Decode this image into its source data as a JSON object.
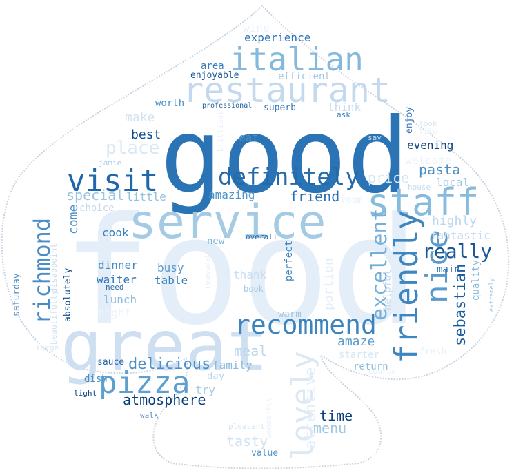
{
  "words": [
    {
      "text": "food",
      "color": "#e4eef8",
      "rotate": 0
    },
    {
      "text": "good",
      "color": "#2a74b6",
      "rotate": 0
    },
    {
      "text": "great",
      "color": "#cddff0",
      "rotate": 0
    },
    {
      "text": "service",
      "color": "#a4cbe3",
      "rotate": 0
    },
    {
      "text": "restaurant",
      "color": "#c3d9ed",
      "rotate": 0
    },
    {
      "text": "staff",
      "color": "#86bbde",
      "rotate": 0
    },
    {
      "text": "italian",
      "color": "#85b9dc",
      "rotate": 0
    },
    {
      "text": "recommend",
      "color": "#3b84bf",
      "rotate": 0
    },
    {
      "text": "friendly",
      "color": "#3d86c0",
      "rotate": -90
    },
    {
      "text": "pizza",
      "color": "#5d9fce",
      "rotate": 0
    },
    {
      "text": "lovely",
      "color": "#dce9f5",
      "rotate": -90
    },
    {
      "text": "visit",
      "color": "#1f67ad",
      "rotate": 0
    },
    {
      "text": "nice",
      "color": "#5b9bcb",
      "rotate": -90
    },
    {
      "text": "definitely",
      "color": "#236aab",
      "rotate": 0
    },
    {
      "text": "richmond",
      "color": "#4a8cc5",
      "rotate": -90
    },
    {
      "text": "excellent",
      "color": "#75afd7",
      "rotate": -90
    },
    {
      "text": "really",
      "color": "#1a5896",
      "rotate": 0
    },
    {
      "text": "delicious",
      "color": "#4b90c8",
      "rotate": 0
    },
    {
      "text": "atmosphere",
      "color": "#083e7a",
      "rotate": 0
    },
    {
      "text": "attentive",
      "color": "#e5eef8",
      "rotate": -90
    },
    {
      "text": "sebastian",
      "color": "#1b5ba0",
      "rotate": -90
    },
    {
      "text": "place",
      "color": "#dbe8f4",
      "rotate": 0
    },
    {
      "text": "pasta",
      "color": "#4a8fc4",
      "rotate": 0
    },
    {
      "text": "friend",
      "color": "#2c6fb0",
      "rotate": 0
    },
    {
      "text": "price",
      "color": "#d7e6f3",
      "rotate": 0
    },
    {
      "text": "special",
      "color": "#9ac4e0",
      "rotate": 0
    },
    {
      "text": "menu",
      "color": "#9fc8e3",
      "rotate": 0
    },
    {
      "text": "time",
      "color": "#0a407d",
      "rotate": 0
    },
    {
      "text": "meal",
      "color": "#bdd6ec",
      "rotate": 0
    },
    {
      "text": "tasty",
      "color": "#d0e2f2",
      "rotate": 0
    },
    {
      "text": "amaze",
      "color": "#5a9bcb",
      "rotate": 0
    },
    {
      "text": "highly",
      "color": "#bcd6ec",
      "rotate": 0
    },
    {
      "text": "make",
      "color": "#d2e3f2",
      "rotate": 0
    },
    {
      "text": "best",
      "color": "#104b8b",
      "rotate": 0
    },
    {
      "text": "come",
      "color": "#4d91c8",
      "rotate": -90
    },
    {
      "text": "family",
      "color": "#8bbcdc",
      "rotate": 0
    },
    {
      "text": "evening",
      "color": "#0b417c",
      "rotate": 0
    },
    {
      "text": "welcome",
      "color": "#e8f1fa",
      "rotate": 0
    },
    {
      "text": "local",
      "color": "#a2c9e4",
      "rotate": 0
    },
    {
      "text": "portion",
      "color": "#e2edf7",
      "rotate": -90
    },
    {
      "text": "fantastic",
      "color": "#c7dcef",
      "rotate": 0
    },
    {
      "text": "amazing",
      "color": "#5195c9",
      "rotate": 0
    },
    {
      "text": "little",
      "color": "#91c1de",
      "rotate": 0
    },
    {
      "text": "dinner",
      "color": "#4689c3",
      "rotate": 0
    },
    {
      "text": "busy",
      "color": "#5a99cb",
      "rotate": 0
    },
    {
      "text": "table",
      "color": "#3a80bd",
      "rotate": 0
    },
    {
      "text": "lunch",
      "color": "#88bcdd",
      "rotate": 0
    },
    {
      "text": "waiter",
      "color": "#2e76b9",
      "rotate": 0
    },
    {
      "text": "cook",
      "color": "#3b81bd",
      "rotate": 0
    },
    {
      "text": "new",
      "color": "#7cb3d9",
      "rotate": 0
    },
    {
      "text": "warm",
      "color": "#9dc6e2",
      "rotate": 0
    },
    {
      "text": "thank",
      "color": "#c8ddf0",
      "rotate": 0
    },
    {
      "text": "night",
      "color": "#eef4fb",
      "rotate": 0
    },
    {
      "text": "starter",
      "color": "#d7e6f4",
      "rotate": 0
    },
    {
      "text": "return",
      "color": "#8ebfdd",
      "rotate": 0
    },
    {
      "text": "perfect",
      "color": "#3f84c0",
      "rotate": -90
    },
    {
      "text": "quality",
      "color": "#8cbcdc",
      "rotate": -90
    },
    {
      "text": "main",
      "color": "#2c70b0",
      "rotate": 0
    },
    {
      "text": "helpful",
      "color": "#c5dbef",
      "rotate": -90
    },
    {
      "text": "experience",
      "color": "#2a74b6",
      "rotate": 0
    },
    {
      "text": "area",
      "color": "#3a7fbc",
      "rotate": 0
    },
    {
      "text": "wine",
      "color": "#e8f0f9",
      "rotate": 0
    },
    {
      "text": "efficient",
      "color": "#a3c9e3",
      "rotate": 0
    },
    {
      "text": "enjoyable",
      "color": "#1a5a9b",
      "rotate": 0
    },
    {
      "text": "worth",
      "color": "#4d92c8",
      "rotate": 0
    },
    {
      "text": "professional",
      "color": "#21649f",
      "rotate": 0
    },
    {
      "text": "superb",
      "color": "#3a7ebc",
      "rotate": 0
    },
    {
      "text": "think",
      "color": "#c7dcef",
      "rotate": 0
    },
    {
      "text": "ask",
      "color": "#3e84c0",
      "rotate": 0
    },
    {
      "text": "enjoy",
      "color": "#3678b7",
      "rotate": -90
    },
    {
      "text": "eat",
      "color": "#4b8fc6",
      "rotate": 0
    },
    {
      "text": "choice",
      "color": "#c3d9ed",
      "rotate": 0
    },
    {
      "text": "dish",
      "color": "#4a8ec6",
      "rotate": 0
    },
    {
      "text": "sauce",
      "color": "#2866a8",
      "rotate": 0
    },
    {
      "text": "day",
      "color": "#b8d3ea",
      "rotate": 0
    },
    {
      "text": "try",
      "color": "#a7cbe4",
      "rotate": 0
    },
    {
      "text": "light",
      "color": "#0b3f7b",
      "rotate": 0
    },
    {
      "text": "walk",
      "color": "#558fc2",
      "rotate": 0
    },
    {
      "text": "value",
      "color": "#559ad0",
      "rotate": 0
    },
    {
      "text": "book",
      "color": "#a7cbe3",
      "rotate": 0
    },
    {
      "text": "saturday",
      "color": "#5692c5",
      "rotate": -90
    },
    {
      "text": "absolutely",
      "color": "#0e4a8c",
      "rotate": -90
    },
    {
      "text": "disappoint",
      "color": "#cadef0",
      "rotate": -90
    },
    {
      "text": "beautifully",
      "color": "#d3e4f3",
      "rotate": -90
    },
    {
      "text": "reasonable",
      "color": "#e4eef8",
      "rotate": -90
    },
    {
      "text": "wonderful",
      "color": "#e9f1fa",
      "rotate": -90
    },
    {
      "text": "brilliant",
      "color": "#e7f0f9",
      "rotate": -90
    },
    {
      "text": "jamie",
      "color": "#a8cbe4",
      "rotate": 0
    },
    {
      "text": "overall",
      "color": "#2e6eac",
      "rotate": 0
    },
    {
      "text": "need",
      "color": "#2c6ba8",
      "rotate": 0
    },
    {
      "text": "extremely",
      "color": "#9ec7e2",
      "rotate": -90
    },
    {
      "text": "say",
      "color": "#c6dcef",
      "rotate": 0
    },
    {
      "text": "look",
      "color": "#d5e5f3",
      "rotate": 0
    },
    {
      "text": "like",
      "color": "#e8f0f9",
      "rotate": 0
    },
    {
      "text": "house",
      "color": "#c6dbee",
      "rotate": 0
    },
    {
      "text": "room",
      "color": "#e7f0f9",
      "rotate": 0
    },
    {
      "text": "large",
      "color": "#d6e5f3",
      "rotate": 0
    },
    {
      "text": "fresh",
      "color": "#e4eef8",
      "rotate": 0
    },
    {
      "text": "course",
      "color": "#e7f0f9",
      "rotate": 0
    },
    {
      "text": "pleasant",
      "color": "#d4e4f2",
      "rotate": 0
    }
  ]
}
